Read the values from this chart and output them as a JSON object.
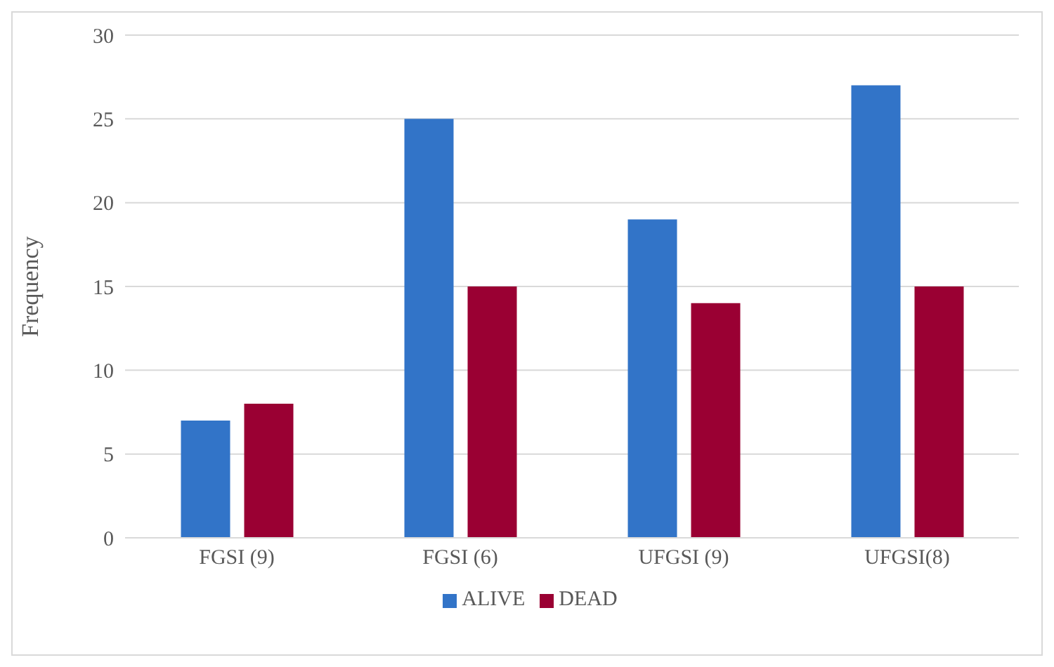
{
  "chart_data": {
    "type": "bar",
    "ylabel": "Frequency",
    "categories": [
      "FGSI (9)",
      "FGSI (6)",
      "UFGSI (9)",
      "UFGSI(8)"
    ],
    "series": [
      {
        "name": "ALIVE",
        "color": "#3274c8",
        "values": [
          7,
          25,
          19,
          27
        ]
      },
      {
        "name": "DEAD",
        "color": "#9a0033",
        "values": [
          8,
          15,
          14,
          15
        ]
      }
    ],
    "ylim": [
      0,
      30
    ],
    "yticks": [
      0,
      5,
      10,
      15,
      20,
      25,
      30
    ],
    "grid": "y",
    "legend": "bottom"
  }
}
